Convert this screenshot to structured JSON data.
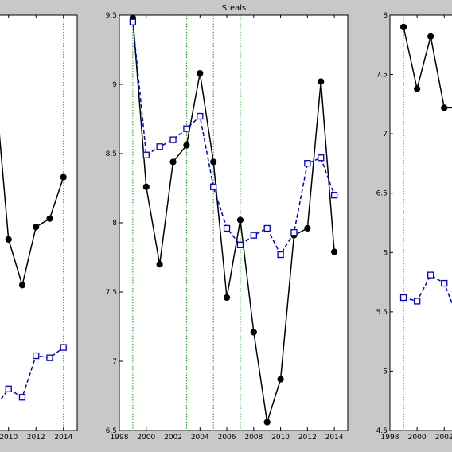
{
  "figure": {
    "title": "Steals"
  },
  "chart_data": [
    {
      "type": "line",
      "title": "",
      "xlabel": "",
      "ylabel": "",
      "xlim": [
        2008.8,
        2015
      ],
      "ylim": [
        0,
        10
      ],
      "xticks": [
        2010,
        2012,
        2014
      ],
      "yticks": [],
      "vlines": [
        2014
      ],
      "grid": false,
      "legend": "none",
      "series": [
        {
          "color": "#000000",
          "marker": "circle",
          "linestyle": "solid",
          "x": [
            2008.9,
            2010,
            2011,
            2012,
            2013,
            2014
          ],
          "y": [
            8.8,
            4.6,
            3.5,
            4.9,
            5.1,
            6.1
          ]
        },
        {
          "color": "#0000cc",
          "marker": "square",
          "linestyle": "dashed",
          "x": [
            2008.9,
            2010,
            2011,
            2012,
            2013,
            2014
          ],
          "y": [
            0.5,
            1.0,
            0.8,
            1.8,
            1.75,
            2.0
          ]
        }
      ]
    },
    {
      "type": "line",
      "title": "Steals",
      "xlabel": "",
      "ylabel": "",
      "xlim": [
        1998,
        2015
      ],
      "ylim": [
        6.5,
        9.5
      ],
      "xticks": [
        1998,
        2000,
        2002,
        2004,
        2006,
        2008,
        2010,
        2012,
        2014
      ],
      "yticks": [
        6.5,
        7,
        7.5,
        8,
        8.5,
        9,
        9.5
      ],
      "vlines": [
        1999,
        2003,
        2005,
        2007
      ],
      "grid": false,
      "legend": "none",
      "series": [
        {
          "color": "#000000",
          "marker": "circle",
          "linestyle": "solid",
          "x": [
            1999,
            2000,
            2001,
            2002,
            2003,
            2004,
            2005,
            2006,
            2007,
            2008,
            2009,
            2010,
            2011,
            2012,
            2013,
            2014
          ],
          "y": [
            9.48,
            8.26,
            7.7,
            8.44,
            8.56,
            9.08,
            8.44,
            7.46,
            8.02,
            7.21,
            6.56,
            6.87,
            7.91,
            7.96,
            9.02,
            7.79
          ]
        },
        {
          "color": "#0000cc",
          "marker": "square",
          "linestyle": "dashed",
          "x": [
            1999,
            2000,
            2001,
            2002,
            2003,
            2004,
            2005,
            2006,
            2007,
            2008,
            2009,
            2010,
            2011,
            2012,
            2013,
            2014
          ],
          "y": [
            9.45,
            8.49,
            8.55,
            8.6,
            8.68,
            8.77,
            8.26,
            7.96,
            7.84,
            7.91,
            7.96,
            7.77,
            7.93,
            8.43,
            8.47,
            8.2
          ]
        }
      ]
    },
    {
      "type": "line",
      "title": "",
      "xlabel": "",
      "ylabel": "",
      "xlim": [
        1998,
        2015
      ],
      "ylim": [
        4.5,
        8
      ],
      "xticks": [
        1998,
        2000,
        2002
      ],
      "yticks": [
        4.5,
        5,
        5.5,
        6,
        6.5,
        7,
        7.5,
        8
      ],
      "vlines": [
        1999
      ],
      "grid": false,
      "legend": "none",
      "series": [
        {
          "color": "#000000",
          "marker": "circle",
          "linestyle": "solid",
          "x": [
            1999,
            2000,
            2001,
            2002,
            2003
          ],
          "y": [
            7.9,
            7.38,
            7.82,
            7.22,
            7.22
          ]
        },
        {
          "color": "#0000cc",
          "marker": "square",
          "linestyle": "dashed",
          "x": [
            1999,
            2000,
            2001,
            2002,
            2003
          ],
          "y": [
            5.62,
            5.59,
            5.81,
            5.74,
            5.45
          ]
        }
      ]
    }
  ]
}
